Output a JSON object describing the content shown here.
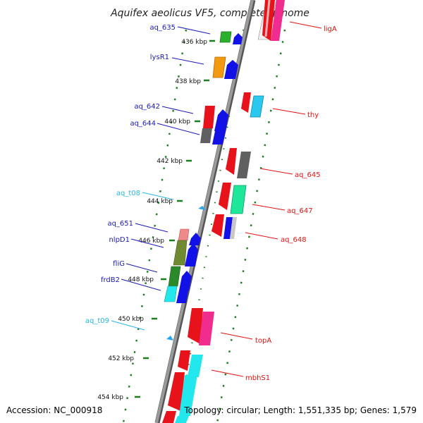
{
  "title": "Aquifex aeolicus VF5, complete genome",
  "footer": {
    "accession": "Accession: NC_000918",
    "topology": "Topology: circular; Length: 1,551,335 bp; Genes: 1,579"
  },
  "colors": {
    "left_label": "#1a1ab4",
    "left_rna_label": "#29b6e6",
    "right_label": "#e01212",
    "backbone": "#8a8a8a",
    "tick": "#1e7d1e"
  },
  "scale_ticks": [
    "436 kbp",
    "438 kbp",
    "440 kbp",
    "442 kbp",
    "444 kbp",
    "446 kbp",
    "448 kbp",
    "450 kbp",
    "452 kbp",
    "454 kbp"
  ],
  "left_labels": [
    {
      "name": "aq_635",
      "type": "gene"
    },
    {
      "name": "lysR1",
      "type": "gene"
    },
    {
      "name": "aq_642",
      "type": "gene"
    },
    {
      "name": "aq_644",
      "type": "gene"
    },
    {
      "name": "aq_t08",
      "type": "rna"
    },
    {
      "name": "aq_651",
      "type": "gene"
    },
    {
      "name": "nlpD1",
      "type": "gene"
    },
    {
      "name": "fliG",
      "type": "gene"
    },
    {
      "name": "frdB2",
      "type": "gene"
    },
    {
      "name": "aq_t09",
      "type": "rna"
    }
  ],
  "right_labels": [
    {
      "name": "ligA"
    },
    {
      "name": "thy"
    },
    {
      "name": "aq_645"
    },
    {
      "name": "aq_647"
    },
    {
      "name": "aq_648"
    },
    {
      "name": "topA"
    },
    {
      "name": "mbhS1"
    }
  ]
}
